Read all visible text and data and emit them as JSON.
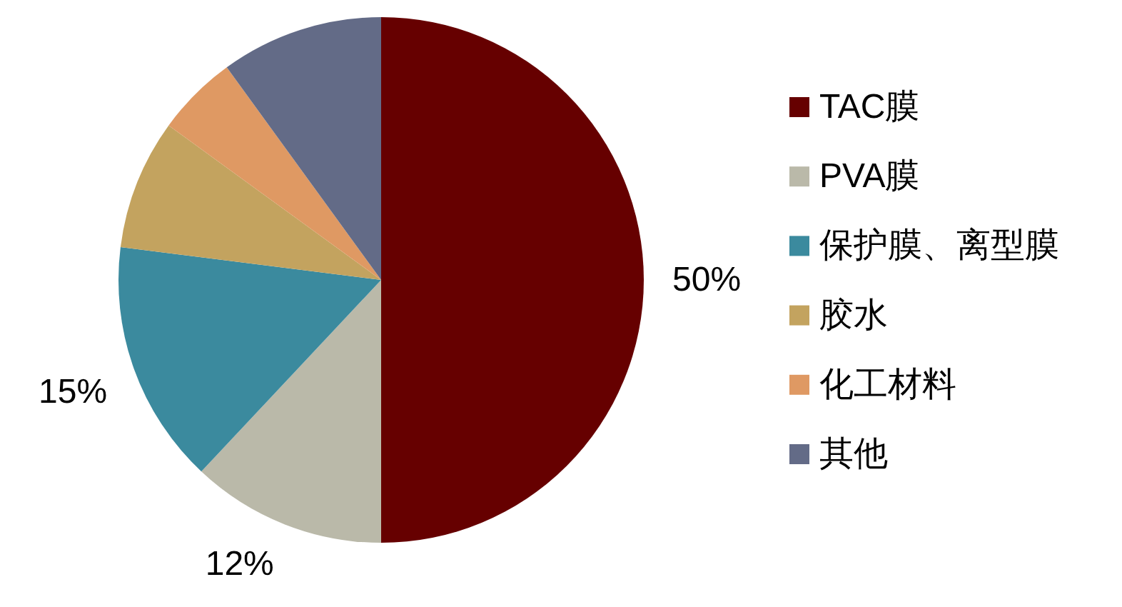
{
  "chart_data": {
    "type": "pie",
    "categories": [
      "TAC膜",
      "PVA膜",
      "保护膜、离型膜",
      "胶水",
      "化工材料",
      "其他"
    ],
    "values": [
      50,
      12,
      15,
      8,
      5,
      10
    ],
    "colors": [
      "#660000",
      "#bab9a9",
      "#3b8a9e",
      "#c3a35f",
      "#df9963",
      "#636b87"
    ],
    "value_labels": [
      "50%",
      "12%",
      "15%",
      null,
      null,
      null
    ],
    "legend": "right"
  }
}
